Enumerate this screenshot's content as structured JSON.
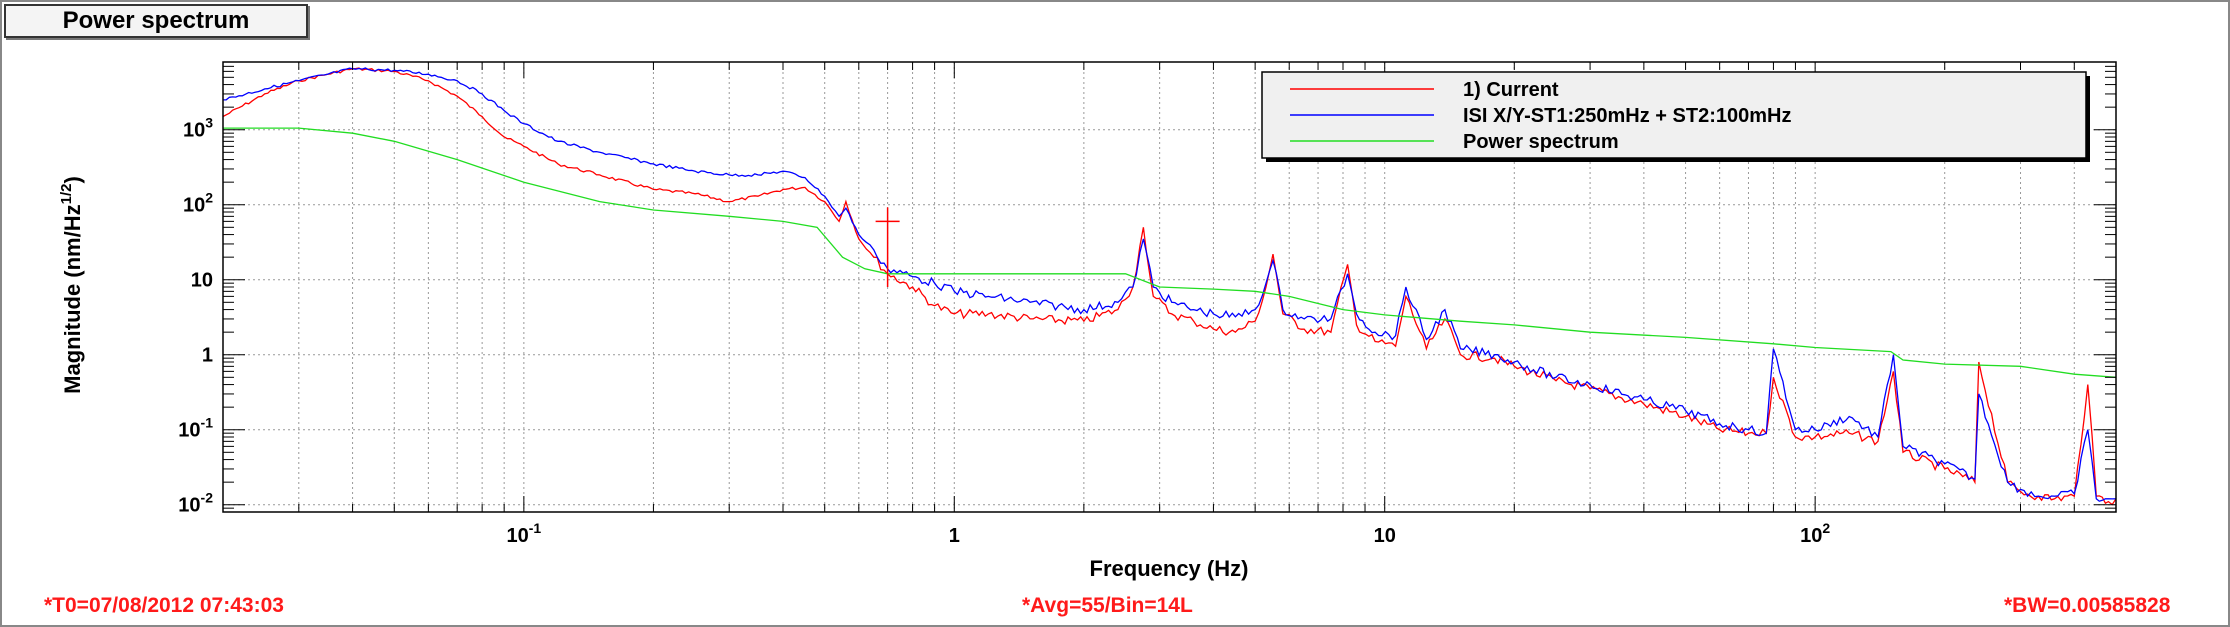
{
  "tab_title": "Power spectrum",
  "footer": {
    "t0": "*T0=07/08/2012 07:43:03",
    "avg": "*Avg=55/Bin=14L",
    "bw": "*BW=0.00585828"
  },
  "colors": {
    "current": "#ff0000",
    "isi": "#0000ff",
    "power": "#22dd22"
  },
  "chart_data": {
    "type": "line",
    "title": "",
    "xlabel": "Frequency (Hz)",
    "ylabel": "Magnitude (nm/Hz^1/2)",
    "xscale": "log",
    "yscale": "log",
    "xlim": [
      0.02,
      500
    ],
    "ylim": [
      0.008,
      8000
    ],
    "grid": true,
    "legend_position": "top-right",
    "x_ticks": [
      {
        "value": 0.1,
        "label": "10",
        "sup": "-1"
      },
      {
        "value": 1,
        "label": "1",
        "sup": ""
      },
      {
        "value": 10,
        "label": "10",
        "sup": ""
      },
      {
        "value": 100,
        "label": "10",
        "sup": "2"
      }
    ],
    "y_ticks": [
      {
        "value": 0.01,
        "label": "10",
        "sup": "-2"
      },
      {
        "value": 0.1,
        "label": "10",
        "sup": "-1"
      },
      {
        "value": 1,
        "label": "1",
        "sup": ""
      },
      {
        "value": 10,
        "label": "10",
        "sup": ""
      },
      {
        "value": 100,
        "label": "10",
        "sup": "2"
      },
      {
        "value": 1000,
        "label": "10",
        "sup": "3"
      }
    ],
    "series": [
      {
        "name": "1) Current",
        "color": "#ff0000",
        "x": [
          0.02,
          0.025,
          0.03,
          0.035,
          0.04,
          0.05,
          0.06,
          0.07,
          0.08,
          0.09,
          0.1,
          0.12,
          0.15,
          0.2,
          0.25,
          0.3,
          0.35,
          0.4,
          0.45,
          0.5,
          0.54,
          0.56,
          0.6,
          0.65,
          0.7,
          0.8,
          0.9,
          1.0,
          1.2,
          1.5,
          2.0,
          2.4,
          2.6,
          2.75,
          2.9,
          3.2,
          3.6,
          4.0,
          4.5,
          5.0,
          5.3,
          5.5,
          5.8,
          6.5,
          7.5,
          8.2,
          8.6,
          9.5,
          10.6,
          11.2,
          12.5,
          13.8,
          15,
          18,
          20,
          25,
          30,
          40,
          50,
          60,
          70,
          77,
          80,
          90,
          100,
          120,
          140,
          152,
          160,
          200,
          235,
          240,
          280,
          300,
          330,
          360,
          400,
          430,
          450,
          480,
          500
        ],
        "y": [
          1500,
          3000,
          4500,
          5500,
          6500,
          6000,
          4500,
          2800,
          1500,
          800,
          600,
          350,
          250,
          160,
          140,
          110,
          130,
          160,
          170,
          110,
          60,
          110,
          35,
          20,
          12,
          8,
          4.5,
          3.5,
          3.5,
          3,
          2.8,
          4,
          8,
          50,
          6,
          3.5,
          2.8,
          2.2,
          2.0,
          2.8,
          8,
          22,
          3.5,
          2.2,
          2.0,
          16,
          2.5,
          1.5,
          1.3,
          6,
          1.2,
          3,
          1,
          0.9,
          0.7,
          0.45,
          0.35,
          0.22,
          0.15,
          0.1,
          0.09,
          0.09,
          0.5,
          0.08,
          0.08,
          0.09,
          0.07,
          0.6,
          0.05,
          0.03,
          0.02,
          0.8,
          0.02,
          0.015,
          0.013,
          0.012,
          0.013,
          0.4,
          0.013,
          0.011,
          0.012
        ]
      },
      {
        "name": "ISI X/Y-ST1:250mHz + ST2:100mHz",
        "color": "#0000ff",
        "x": [
          0.02,
          0.025,
          0.03,
          0.035,
          0.04,
          0.05,
          0.06,
          0.07,
          0.08,
          0.09,
          0.1,
          0.12,
          0.15,
          0.2,
          0.25,
          0.3,
          0.35,
          0.4,
          0.45,
          0.5,
          0.54,
          0.56,
          0.6,
          0.65,
          0.7,
          0.8,
          0.9,
          1.0,
          1.2,
          1.5,
          2.0,
          2.4,
          2.6,
          2.75,
          2.9,
          3.2,
          3.6,
          4.0,
          4.5,
          5.0,
          5.3,
          5.5,
          5.8,
          6.5,
          7.5,
          8.2,
          8.6,
          9.5,
          10.6,
          11.2,
          12.5,
          13.8,
          15,
          18,
          20,
          25,
          30,
          40,
          50,
          60,
          70,
          77,
          80,
          90,
          100,
          120,
          140,
          152,
          160,
          200,
          235,
          240,
          280,
          300,
          330,
          360,
          400,
          430,
          450,
          480,
          500
        ],
        "y": [
          2500,
          3500,
          4500,
          5500,
          6500,
          6200,
          5500,
          4500,
          3000,
          1800,
          1200,
          700,
          500,
          350,
          280,
          250,
          250,
          280,
          230,
          130,
          70,
          90,
          40,
          25,
          14,
          11,
          9,
          7,
          6,
          5,
          4,
          5,
          8,
          35,
          8,
          5,
          4,
          3.5,
          3.2,
          4,
          9,
          18,
          4,
          3,
          3,
          12,
          3.5,
          2,
          1.8,
          8,
          1.6,
          4,
          1.2,
          1,
          0.8,
          0.5,
          0.4,
          0.25,
          0.18,
          0.12,
          0.1,
          0.09,
          1.2,
          0.1,
          0.1,
          0.15,
          0.08,
          1.0,
          0.06,
          0.035,
          0.022,
          0.3,
          0.02,
          0.016,
          0.013,
          0.013,
          0.014,
          0.1,
          0.012,
          0.012,
          0.012
        ]
      },
      {
        "name": "Power spectrum",
        "color": "#22dd22",
        "x": [
          0.02,
          0.03,
          0.04,
          0.05,
          0.07,
          0.1,
          0.15,
          0.2,
          0.3,
          0.4,
          0.48,
          0.55,
          0.62,
          0.7,
          1,
          1.5,
          2.5,
          3,
          4,
          5,
          6,
          8,
          10,
          15,
          20,
          30,
          50,
          80,
          100,
          150,
          160,
          200,
          300,
          400,
          500
        ],
        "y": [
          1050,
          1050,
          900,
          700,
          400,
          200,
          110,
          85,
          70,
          60,
          50,
          20,
          14,
          12,
          12,
          12,
          12,
          8,
          7.5,
          7,
          6,
          4,
          3.4,
          2.8,
          2.5,
          2.0,
          1.7,
          1.4,
          1.25,
          1.1,
          0.85,
          0.75,
          0.7,
          0.55,
          0.5
        ]
      }
    ]
  }
}
